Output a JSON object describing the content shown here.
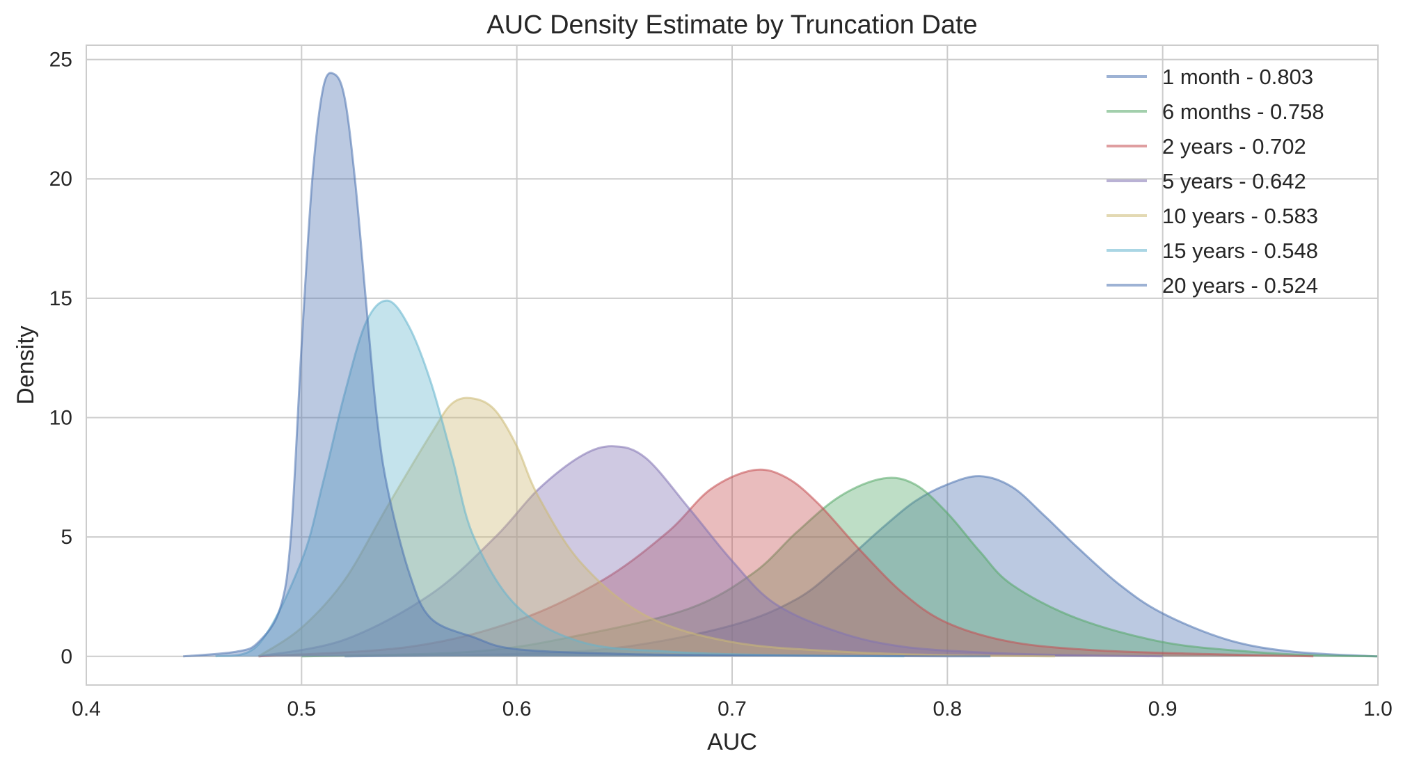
{
  "chart_data": {
    "type": "area",
    "title": "AUC Density Estimate by Truncation Date",
    "xlabel": "AUC",
    "ylabel": "Density",
    "xlim": [
      0.4,
      1.0
    ],
    "ylim": [
      -1.2,
      25.6
    ],
    "x_ticks": [
      "0.4",
      "0.5",
      "0.6",
      "0.7",
      "0.8",
      "0.9",
      "1.0"
    ],
    "y_ticks": [
      "0",
      "5",
      "10",
      "15",
      "20",
      "25"
    ],
    "grid": true,
    "legend_position": "top-right",
    "series": [
      {
        "name": "1 month - 0.803",
        "color": "#4c72b0",
        "x": [
          0.52,
          0.6,
          0.65,
          0.7,
          0.73,
          0.75,
          0.77,
          0.785,
          0.8,
          0.815,
          0.83,
          0.845,
          0.86,
          0.88,
          0.9,
          0.93,
          0.96,
          1.0
        ],
        "y": [
          0.0,
          0.1,
          0.4,
          1.3,
          2.4,
          3.8,
          5.4,
          6.5,
          7.2,
          7.55,
          7.1,
          5.9,
          4.6,
          3.0,
          1.8,
          0.7,
          0.2,
          0.0
        ]
      },
      {
        "name": "6 months - 0.758",
        "color": "#55a868",
        "x": [
          0.5,
          0.58,
          0.63,
          0.68,
          0.71,
          0.73,
          0.75,
          0.77,
          0.785,
          0.8,
          0.815,
          0.83,
          0.86,
          0.9,
          0.94,
          0.97,
          1.0
        ],
        "y": [
          0.0,
          0.2,
          0.9,
          2.0,
          3.5,
          5.2,
          6.7,
          7.45,
          7.2,
          6.0,
          4.4,
          3.0,
          1.6,
          0.6,
          0.2,
          0.05,
          0.0
        ]
      },
      {
        "name": "2 years - 0.702",
        "color": "#c44e52",
        "x": [
          0.48,
          0.55,
          0.6,
          0.64,
          0.67,
          0.69,
          0.71,
          0.725,
          0.74,
          0.76,
          0.78,
          0.8,
          0.83,
          0.87,
          0.92,
          0.97
        ],
        "y": [
          0.0,
          0.4,
          1.5,
          3.2,
          5.2,
          7.0,
          7.8,
          7.5,
          6.4,
          4.4,
          2.6,
          1.4,
          0.6,
          0.25,
          0.1,
          0.0
        ]
      },
      {
        "name": "5 years - 0.642",
        "color": "#8172b2",
        "x": [
          0.48,
          0.52,
          0.56,
          0.59,
          0.61,
          0.63,
          0.645,
          0.66,
          0.68,
          0.7,
          0.72,
          0.75,
          0.78,
          0.82,
          0.86,
          0.9
        ],
        "y": [
          0.0,
          0.7,
          2.6,
          5.0,
          7.0,
          8.4,
          8.8,
          8.3,
          6.2,
          4.0,
          2.2,
          1.0,
          0.4,
          0.15,
          0.05,
          0.0
        ]
      },
      {
        "name": "10 years - 0.583",
        "color": "#ccb974",
        "x": [
          0.48,
          0.5,
          0.52,
          0.54,
          0.56,
          0.57,
          0.58,
          0.59,
          0.6,
          0.61,
          0.63,
          0.66,
          0.7,
          0.75,
          0.8,
          0.85
        ],
        "y": [
          0.0,
          1.2,
          3.2,
          6.3,
          9.3,
          10.6,
          10.8,
          10.3,
          8.8,
          6.7,
          3.9,
          1.7,
          0.6,
          0.2,
          0.05,
          0.0
        ]
      },
      {
        "name": "15 years - 0.548",
        "color": "#64b5cd",
        "x": [
          0.46,
          0.48,
          0.5,
          0.51,
          0.52,
          0.53,
          0.54,
          0.55,
          0.56,
          0.57,
          0.58,
          0.6,
          0.63,
          0.67,
          0.72,
          0.78
        ],
        "y": [
          0.0,
          0.5,
          4.0,
          7.3,
          11.0,
          14.0,
          14.9,
          13.8,
          11.5,
          8.3,
          5.0,
          2.1,
          0.6,
          0.2,
          0.05,
          0.0
        ]
      },
      {
        "name": "20 years - 0.524",
        "color": "#4c72b0",
        "x": [
          0.445,
          0.47,
          0.48,
          0.49,
          0.495,
          0.5,
          0.505,
          0.51,
          0.515,
          0.52,
          0.525,
          0.53,
          0.535,
          0.54,
          0.55,
          0.56,
          0.58,
          0.6,
          0.65,
          0.7,
          0.75,
          0.8,
          0.82
        ],
        "y": [
          0.0,
          0.2,
          0.6,
          2.0,
          5.0,
          13.0,
          20.0,
          23.8,
          24.4,
          23.4,
          19.8,
          14.8,
          10.0,
          7.0,
          3.5,
          1.6,
          0.8,
          0.3,
          0.1,
          0.05,
          0.02,
          0.0,
          0.0
        ]
      }
    ]
  }
}
